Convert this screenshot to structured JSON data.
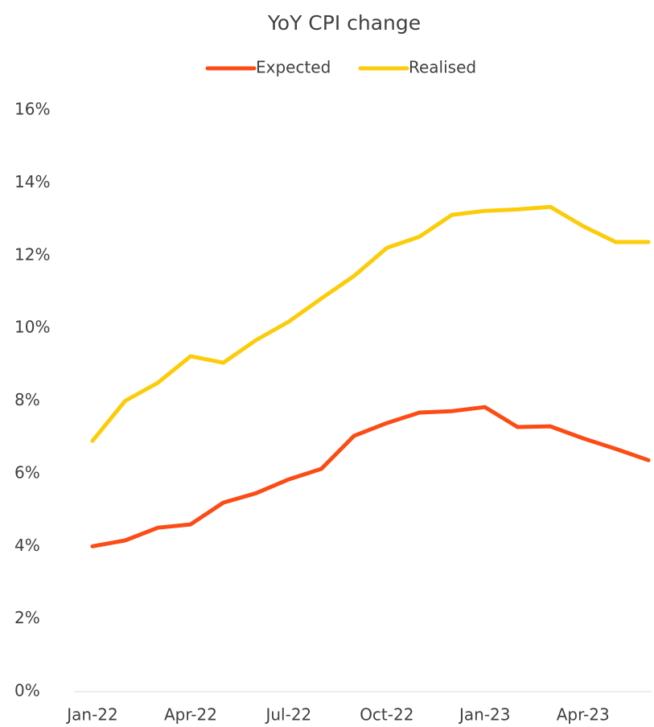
{
  "chart_data": {
    "type": "line",
    "title": "YoY CPI change",
    "categories": [
      "Jan-22",
      null,
      null,
      "Apr-22",
      null,
      null,
      "Jul-22",
      null,
      null,
      "Oct-22",
      null,
      null,
      "Jan-23",
      null,
      null,
      "Apr-23",
      null,
      null
    ],
    "series": [
      {
        "name": "Expected",
        "color": "#fc4c16",
        "values": [
          4.0,
          4.16,
          4.51,
          4.6,
          5.2,
          5.46,
          5.84,
          6.13,
          7.04,
          7.39,
          7.68,
          7.72,
          7.83,
          7.28,
          7.3,
          6.97,
          6.68,
          6.37
        ]
      },
      {
        "name": "Realised",
        "color": "#fccc0a",
        "values": [
          6.9,
          8.0,
          8.5,
          9.23,
          9.05,
          9.67,
          10.18,
          10.82,
          11.44,
          12.21,
          12.52,
          13.12,
          13.23,
          13.27,
          13.34,
          12.81,
          12.37,
          12.37
        ]
      }
    ],
    "ylim": [
      0,
      16
    ],
    "yticks": [
      {
        "value": 0,
        "label": "0%"
      },
      {
        "value": 2,
        "label": "2%"
      },
      {
        "value": 4,
        "label": "4%"
      },
      {
        "value": 6,
        "label": "6%"
      },
      {
        "value": 8,
        "label": "8%"
      },
      {
        "value": 10,
        "label": "10%"
      },
      {
        "value": 12,
        "label": "12%"
      },
      {
        "value": 14,
        "label": "14%"
      },
      {
        "value": 16,
        "label": "16%"
      }
    ],
    "grid": false,
    "legend": "top"
  }
}
